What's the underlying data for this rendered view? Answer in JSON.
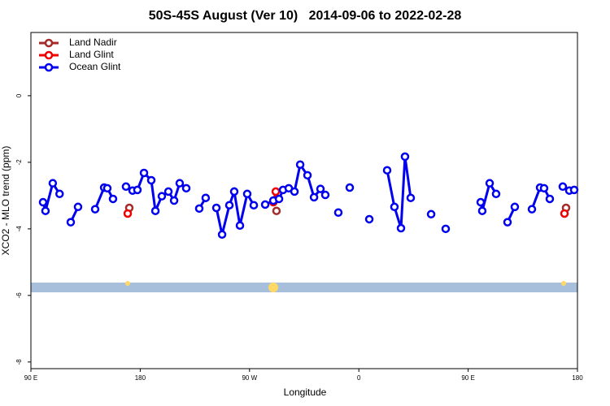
{
  "chart_data": {
    "type": "line",
    "title": "50S-45S August (Ver 10)   2014-09-06 to 2022-02-28",
    "x_label": "Longitude",
    "y_label": "XCO2 - MLO trend (ppm)",
    "xlim": [
      90,
      540
    ],
    "ylim": [
      -8.2,
      1.9
    ],
    "xticks": [
      {
        "value": 90,
        "label": "90 E"
      },
      180,
      {
        "value": 270,
        "label": "90 W"
      },
      {
        "value": 360,
        "label": "0"
      },
      {
        "value": 450,
        "label": "90 E"
      },
      {
        "value": 540,
        "label": "180"
      }
    ],
    "yticks": [
      0,
      -2,
      -4,
      -6,
      -8
    ],
    "legend": "top-left",
    "series": [
      {
        "name": "Land Nadir",
        "color": "#a52a2a",
        "x": [
          171,
          null,
          292.2,
          null,
          530.6
        ],
        "values": [
          -3.37,
          null,
          -3.46,
          null,
          -3.37
        ]
      },
      {
        "name": "Land Glint",
        "color": "#ee0000",
        "x": [
          169.7,
          null,
          291.6,
          289.6,
          null,
          529.3
        ],
        "values": [
          -3.54,
          null,
          -2.88,
          -3.2,
          null,
          -3.54
        ]
      },
      {
        "name": "Ocean Glint",
        "color": "#0000ee",
        "x": [
          100,
          102,
          108,
          113.6,
          null,
          122.8,
          128.8,
          null,
          142.9,
          150.3,
          152.9,
          157.6,
          null,
          168.3,
          173.7,
          177.7,
          183.1,
          189.1,
          192.5,
          197.8,
          203.2,
          207.9,
          212.5,
          217.9,
          null,
          228.6,
          233.9,
          null,
          242.7,
          247.4,
          253.4,
          257.4,
          262.1,
          268.1,
          273.5,
          null,
          282.9,
          289.6,
          294.3,
          297.6,
          302.3,
          307.0,
          311.7,
          317.7,
          323.1,
          328.4,
          332.4,
          null,
          343.1,
          null,
          352.5,
          null,
          368.6,
          null,
          383.3,
          389.3,
          394.7,
          398.0,
          402.7,
          null,
          419.5,
          null,
          431.5,
          null,
          460.3,
          461.6,
          467.7,
          473.0,
          null,
          482.4,
          488.4,
          null,
          502.5,
          509.2,
          512.5,
          517.2,
          null,
          527.9,
          533.3,
          537.3
        ],
        "values": [
          -3.2,
          -3.46,
          -2.63,
          -2.95,
          null,
          -3.8,
          -3.34,
          null,
          -3.41,
          -2.76,
          -2.78,
          -3.1,
          null,
          -2.73,
          -2.85,
          -2.83,
          -2.32,
          -2.54,
          -3.46,
          -3.02,
          -2.88,
          -3.15,
          -2.63,
          -2.78,
          null,
          -3.39,
          -3.07,
          null,
          -3.37,
          -4.17,
          -3.29,
          -2.88,
          -3.9,
          -2.95,
          -3.29,
          null,
          -3.27,
          -3.15,
          -3.1,
          -2.83,
          -2.78,
          -2.88,
          -2.07,
          -2.39,
          -3.05,
          -2.8,
          -2.98,
          null,
          -3.51,
          null,
          -2.76,
          null,
          -3.71,
          null,
          -2.24,
          -3.34,
          -3.98,
          -1.83,
          -3.07,
          null,
          -3.56,
          null,
          -4.0,
          null,
          -3.2,
          -3.46,
          -2.63,
          -2.95,
          null,
          -3.8,
          -3.34,
          null,
          -3.41,
          -2.76,
          -2.78,
          -3.1,
          null,
          -2.73,
          -2.85,
          -2.83
        ]
      }
    ]
  }
}
